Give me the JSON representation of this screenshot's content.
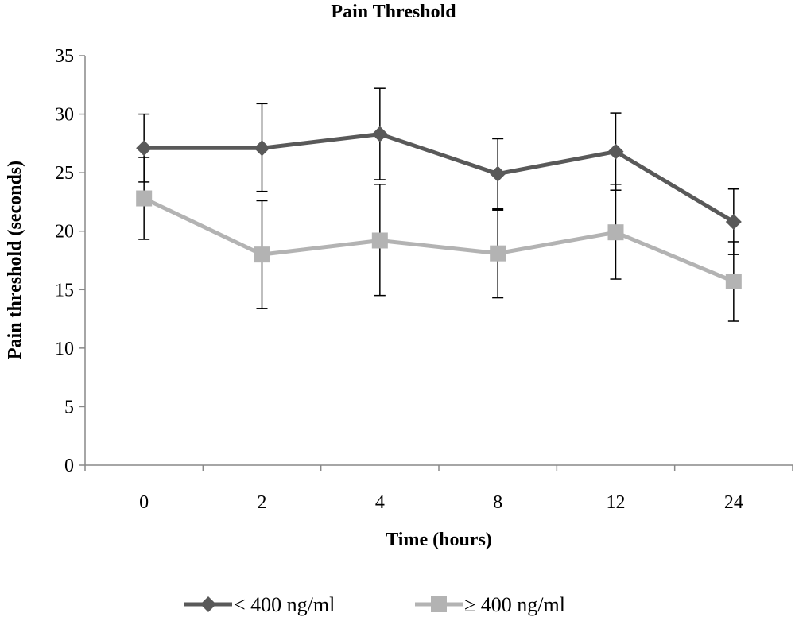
{
  "chart_data": {
    "type": "line",
    "title": "Pain Threshold",
    "xlabel": "Time (hours)",
    "ylabel": "Pain threshold (seconds)",
    "categories": [
      "0",
      "2",
      "4",
      "8",
      "12",
      "24"
    ],
    "ylim": [
      0,
      35
    ],
    "yticks": [
      "0",
      "5",
      "10",
      "15",
      "20",
      "25",
      "30",
      "35"
    ],
    "grid": false,
    "legend_position": "bottom",
    "series": [
      {
        "name": "< 400 ng/ml",
        "marker": "diamond",
        "color": "#595959",
        "values": [
          27.1,
          27.1,
          28.3,
          24.9,
          26.8,
          20.8
        ],
        "error_upper": [
          30.0,
          30.9,
          32.2,
          27.9,
          30.1,
          23.6
        ],
        "error_lower": [
          24.2,
          23.4,
          24.4,
          21.9,
          23.5,
          18.0
        ]
      },
      {
        "name": "≥ 400 ng/ml",
        "marker": "square",
        "color": "#b3b3b3",
        "values": [
          22.8,
          18.0,
          19.2,
          18.1,
          19.9,
          15.7
        ],
        "error_upper": [
          26.3,
          22.6,
          24.0,
          21.8,
          24.0,
          19.1
        ],
        "error_lower": [
          19.3,
          13.4,
          14.5,
          14.3,
          15.9,
          12.3
        ]
      }
    ]
  }
}
